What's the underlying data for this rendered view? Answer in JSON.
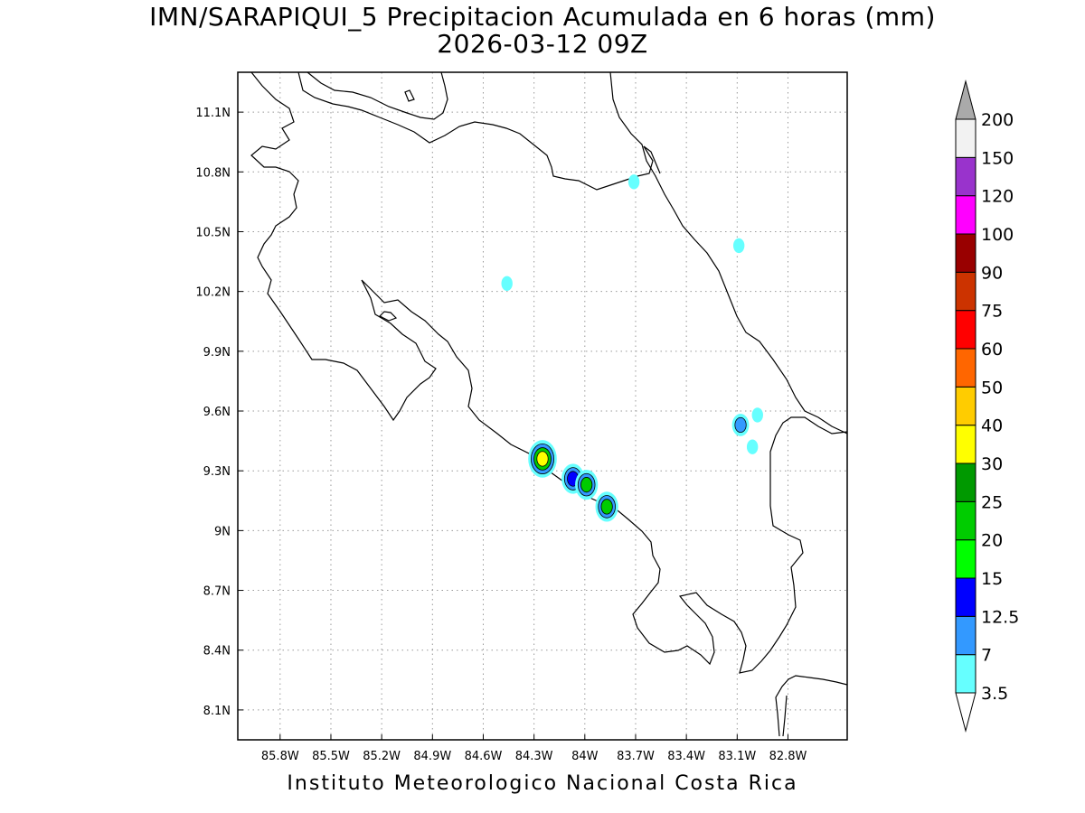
{
  "title": {
    "line1": "IMN/SARAPIQUI_5 Precipitacion Acumulada en 6 horas (mm)",
    "line2": "2026-03-12 09Z"
  },
  "footer": "Instituto Meteorologico Nacional Costa Rica",
  "map": {
    "lon_range": [
      -86.05,
      -82.45
    ],
    "lat_range": [
      7.95,
      11.3
    ],
    "lon_ticks": [
      {
        "value": -85.8,
        "label": "85.8W"
      },
      {
        "value": -85.5,
        "label": "85.5W"
      },
      {
        "value": -85.2,
        "label": "85.2W"
      },
      {
        "value": -84.9,
        "label": "84.9W"
      },
      {
        "value": -84.6,
        "label": "84.6W"
      },
      {
        "value": -84.3,
        "label": "84.3W"
      },
      {
        "value": -84.0,
        "label": "84W"
      },
      {
        "value": -83.7,
        "label": "83.7W"
      },
      {
        "value": -83.4,
        "label": "83.4W"
      },
      {
        "value": -83.1,
        "label": "83.1W"
      },
      {
        "value": -82.8,
        "label": "82.8W"
      }
    ],
    "lat_ticks": [
      {
        "value": 11.1,
        "label": "11.1N"
      },
      {
        "value": 10.8,
        "label": "10.8N"
      },
      {
        "value": 10.5,
        "label": "10.5N"
      },
      {
        "value": 10.2,
        "label": "10.2N"
      },
      {
        "value": 9.9,
        "label": "9.9N"
      },
      {
        "value": 9.6,
        "label": "9.6N"
      },
      {
        "value": 9.3,
        "label": "9.3N"
      },
      {
        "value": 9.0,
        "label": "9N"
      },
      {
        "value": 8.7,
        "label": "8.7N"
      },
      {
        "value": 8.4,
        "label": "8.4N"
      },
      {
        "value": 8.1,
        "label": "8.1N"
      }
    ],
    "grid": "dotted"
  },
  "colorbar": {
    "levels": [
      {
        "label": "3.5",
        "color": "#66ffff"
      },
      {
        "label": "7",
        "color": "#3399ff"
      },
      {
        "label": "12.5",
        "color": "#0000ff"
      },
      {
        "label": "15",
        "color": "#00ff00"
      },
      {
        "label": "20",
        "color": "#00cc00"
      },
      {
        "label": "25",
        "color": "#009900"
      },
      {
        "label": "30",
        "color": "#ffff00"
      },
      {
        "label": "40",
        "color": "#ffcc00"
      },
      {
        "label": "50",
        "color": "#ff6600"
      },
      {
        "label": "60",
        "color": "#ff0000"
      },
      {
        "label": "75",
        "color": "#cc3300"
      },
      {
        "label": "90",
        "color": "#990000"
      },
      {
        "label": "100",
        "color": "#ff00ff"
      },
      {
        "label": "120",
        "color": "#9933cc"
      },
      {
        "label": "150",
        "color": "#f2f2f2"
      },
      {
        "label": "200",
        "color": "#aaaaaa"
      }
    ],
    "top_triangle_color": "#aaaaaa",
    "bottom_triangle_color": "#ffffff"
  },
  "precip_cells": [
    {
      "lon": -84.25,
      "lat": 9.36,
      "levels": [
        "#66ffff",
        "#3399ff",
        "#00cc00",
        "#ffff00"
      ]
    },
    {
      "lon": -84.07,
      "lat": 9.26,
      "levels": [
        "#66ffff",
        "#3399ff",
        "#0000ff"
      ]
    },
    {
      "lon": -83.99,
      "lat": 9.23,
      "levels": [
        "#66ffff",
        "#3399ff",
        "#00cc00"
      ]
    },
    {
      "lon": -83.87,
      "lat": 9.12,
      "levels": [
        "#66ffff",
        "#3399ff",
        "#00cc00"
      ]
    },
    {
      "lon": -83.08,
      "lat": 9.53,
      "levels": [
        "#66ffff",
        "#3399ff"
      ]
    },
    {
      "lon": -82.98,
      "lat": 9.58,
      "levels": [
        "#66ffff"
      ]
    },
    {
      "lon": -83.09,
      "lat": 10.43,
      "levels": [
        "#66ffff"
      ]
    },
    {
      "lon": -83.71,
      "lat": 10.75,
      "levels": [
        "#66ffff"
      ]
    },
    {
      "lon": -84.46,
      "lat": 10.24,
      "levels": [
        "#66ffff"
      ]
    },
    {
      "lon": -83.01,
      "lat": 9.42,
      "levels": [
        "#66ffff"
      ]
    }
  ]
}
